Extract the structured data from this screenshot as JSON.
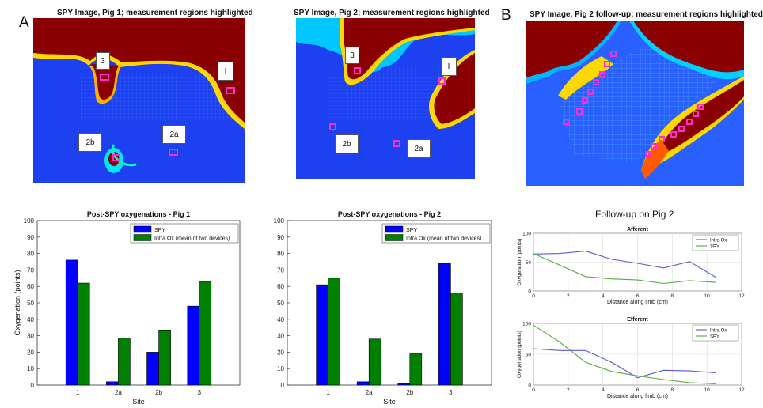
{
  "panel_labels": {
    "a": "A",
    "b": "B"
  },
  "images": [
    {
      "title": "SPY Image, Pig 1; measurement regions highlighted",
      "labels": [
        "3",
        "I",
        "2b",
        "2a"
      ]
    },
    {
      "title": "SPY Image, Pig 2; measurement regions highlighted",
      "labels": [
        "3",
        "I",
        "2b",
        "2a"
      ]
    },
    {
      "title": "SPY Image, Pig 2 follow-up; measurement regions highlighted"
    }
  ],
  "colors": {
    "spy_bar": "#0000ff",
    "intraox_bar": "#008000",
    "intraox_line": "#5b5bd6",
    "spy_line": "#55aa44"
  },
  "chart_data": [
    {
      "type": "bar",
      "title": "Post-SPY oxygenations - Pig 1",
      "xlabel": "Site",
      "ylabel": "Oxygenation (points)",
      "ylim": [
        0,
        100
      ],
      "yticks": [
        0,
        10,
        20,
        30,
        40,
        50,
        60,
        70,
        80,
        90,
        100
      ],
      "categories": [
        "1",
        "2a",
        "2b",
        "3"
      ],
      "legend_position": "top-right",
      "series": [
        {
          "name": "SPY",
          "values": [
            76,
            2,
            20,
            48
          ]
        },
        {
          "name": "Intra.Ox (mean of two devices)",
          "values": [
            62,
            28.5,
            33.5,
            63
          ]
        }
      ]
    },
    {
      "type": "bar",
      "title": "Post-SPY oxygenations - Pig 2",
      "xlabel": "Site",
      "ylabel": "",
      "ylim": [
        0,
        100
      ],
      "yticks": [
        0,
        10,
        20,
        30,
        40,
        50,
        60,
        70,
        80,
        90,
        100
      ],
      "categories": [
        "1",
        "2a",
        "2b",
        "3"
      ],
      "legend_position": "top-right",
      "series": [
        {
          "name": "SPY",
          "values": [
            61,
            2,
            1,
            74
          ]
        },
        {
          "name": "Intra.Ox (mean of two devices)",
          "values": [
            65,
            28,
            19,
            56
          ]
        }
      ]
    },
    {
      "type": "line",
      "suptitle": "Follow-up on Pig 2",
      "title": "Afferent",
      "xlabel": "Distance along limb (cm)",
      "ylabel": "Oxygenation (points)",
      "xlim": [
        0,
        12
      ],
      "ylim": [
        0,
        100
      ],
      "xticks": [
        0,
        2,
        4,
        6,
        8,
        10,
        12
      ],
      "yticks": [
        0,
        50,
        100
      ],
      "grid": true,
      "legend_position": "top-right",
      "series": [
        {
          "name": "Intra.Ox",
          "x": [
            0,
            1.5,
            3,
            4.5,
            6,
            7.5,
            9,
            10.5
          ],
          "values": [
            64,
            65,
            69,
            55,
            48,
            40,
            51,
            24
          ]
        },
        {
          "name": "SPY",
          "x": [
            0,
            1.5,
            3,
            4.5,
            6,
            7.5,
            9,
            10.5
          ],
          "values": [
            65,
            45,
            25,
            21,
            19,
            13,
            18,
            15
          ]
        }
      ]
    },
    {
      "type": "line",
      "title": "Efferent",
      "xlabel": "Distance along limb (cm)",
      "ylabel": "Oxygenation (points)",
      "xlim": [
        0,
        12
      ],
      "ylim": [
        0,
        100
      ],
      "xticks": [
        0,
        2,
        4,
        6,
        8,
        10,
        12
      ],
      "yticks": [
        0,
        50,
        100
      ],
      "grid": true,
      "legend_position": "top-right",
      "series": [
        {
          "name": "Intra.Ox",
          "x": [
            0,
            1.5,
            3,
            4.5,
            6,
            7.5,
            9,
            10.5
          ],
          "values": [
            59,
            56,
            56,
            37,
            12,
            24,
            23,
            20
          ]
        },
        {
          "name": "SPY",
          "x": [
            0,
            1.5,
            3,
            4.5,
            6,
            7.5,
            9,
            10.5
          ],
          "values": [
            97,
            70,
            37,
            22,
            15,
            9,
            4,
            2
          ]
        }
      ]
    }
  ]
}
